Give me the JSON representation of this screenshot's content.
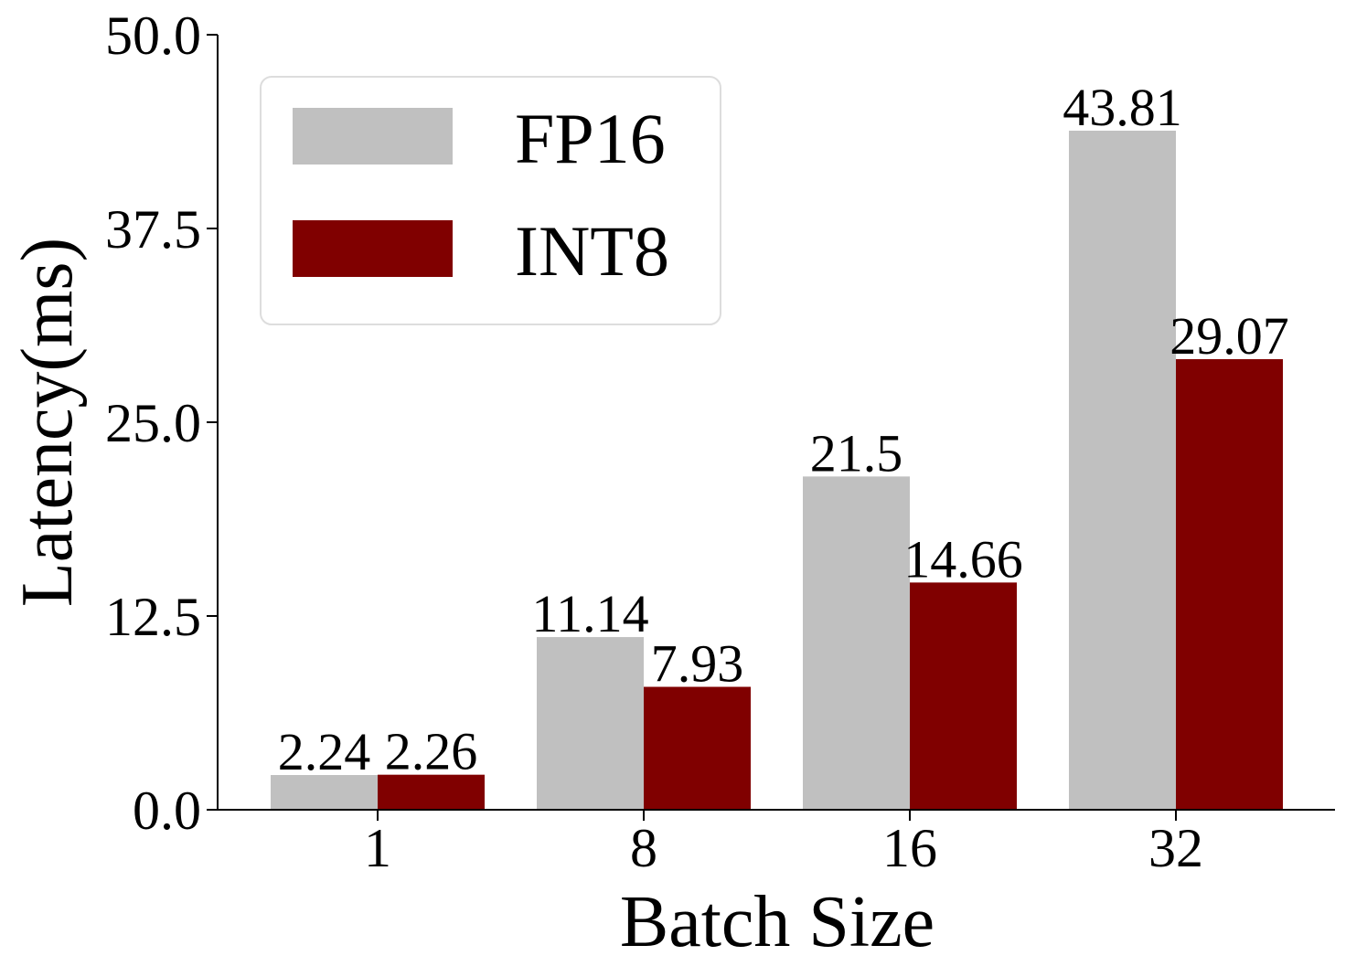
{
  "chart_data": {
    "type": "bar",
    "x_label": "Batch Size",
    "y_label": "Latency(ms)",
    "categories": [
      "1",
      "8",
      "16",
      "32"
    ],
    "series": [
      {
        "name": "FP16",
        "color": "#c0c0c0",
        "values": [
          2.24,
          11.14,
          21.5,
          43.81
        ]
      },
      {
        "name": "INT8",
        "color": "#800000",
        "values": [
          2.26,
          7.93,
          14.66,
          29.07
        ]
      }
    ],
    "ylim": [
      0,
      50
    ],
    "yticks": [
      {
        "value": 0,
        "label": "0.0"
      },
      12.5,
      {
        "value": 25,
        "label": "25.0"
      },
      37.5,
      {
        "value": 50,
        "label": "50.0"
      }
    ],
    "grid": false,
    "legend": "upper left"
  }
}
